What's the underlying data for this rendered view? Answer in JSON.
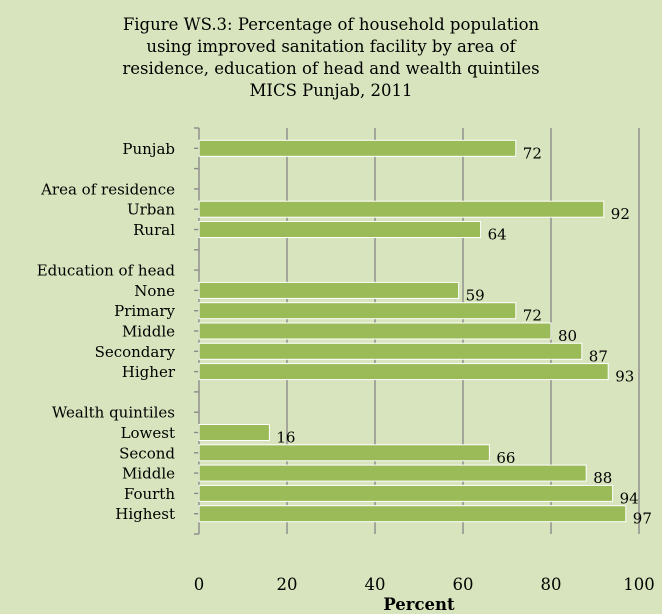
{
  "chart_data": {
    "type": "bar",
    "orientation": "horizontal",
    "title_lines": [
      "Figure WS.3: Percentage of household population",
      "using improved sanitation facility by area of",
      "residence, education of head and wealth quintiles",
      "MICS Punjab, 2011"
    ],
    "xlabel": "Percent",
    "ylabel": "",
    "xlim": [
      0,
      100
    ],
    "x_ticks": [
      "0",
      "20",
      "40",
      "60",
      "80",
      "100"
    ],
    "grid": true,
    "legend": "none",
    "bar_color": "#9bbb59",
    "rows": [
      {
        "label": "Punjab",
        "value": 72
      },
      {
        "label": "",
        "value": null
      },
      {
        "label": "Area of residence",
        "value": null
      },
      {
        "label": "Urban",
        "value": 92
      },
      {
        "label": "Rural",
        "value": 64
      },
      {
        "label": "",
        "value": null
      },
      {
        "label": "Education of head",
        "value": null
      },
      {
        "label": "None",
        "value": 59
      },
      {
        "label": "Primary",
        "value": 72
      },
      {
        "label": "Middle",
        "value": 80
      },
      {
        "label": "Secondary",
        "value": 87
      },
      {
        "label": "Higher",
        "value": 93
      },
      {
        "label": "",
        "value": null
      },
      {
        "label": "Wealth quintiles",
        "value": null
      },
      {
        "label": "Lowest",
        "value": 16
      },
      {
        "label": "Second",
        "value": 66
      },
      {
        "label": "Middle",
        "value": 88
      },
      {
        "label": "Fourth",
        "value": 94
      },
      {
        "label": "Highest",
        "value": 97
      }
    ]
  }
}
